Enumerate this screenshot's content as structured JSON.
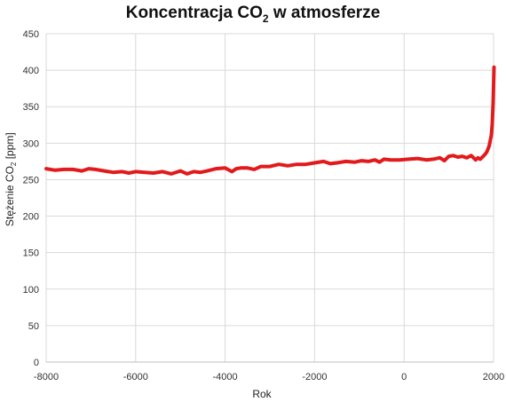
{
  "chart_data": {
    "type": "line",
    "title_main": "Koncentracja CO",
    "title_sub": "2",
    "title_tail": " w atmosferze",
    "xlabel": "Rok",
    "ylabel_main": "Stężenie CO",
    "ylabel_sub": "2",
    "ylabel_tail": " [ppm]",
    "xlim": [
      -8000,
      2000
    ],
    "ylim": [
      0,
      450
    ],
    "xticks": [
      -8000,
      -6000,
      -4000,
      -2000,
      0,
      2000
    ],
    "yticks": [
      0,
      50,
      100,
      150,
      200,
      250,
      300,
      350,
      400,
      450
    ],
    "grid": true,
    "series": [
      {
        "color": "#e31a1c",
        "x": [
          -8000,
          -7800,
          -7600,
          -7400,
          -7200,
          -7050,
          -6900,
          -6700,
          -6500,
          -6300,
          -6150,
          -6000,
          -5800,
          -5600,
          -5400,
          -5200,
          -5000,
          -4850,
          -4700,
          -4550,
          -4400,
          -4200,
          -4000,
          -3850,
          -3750,
          -3650,
          -3500,
          -3350,
          -3200,
          -3000,
          -2800,
          -2600,
          -2400,
          -2200,
          -2000,
          -1800,
          -1650,
          -1500,
          -1300,
          -1100,
          -950,
          -800,
          -650,
          -550,
          -450,
          -300,
          -100,
          100,
          300,
          500,
          650,
          800,
          900,
          1000,
          1100,
          1200,
          1300,
          1400,
          1500,
          1600,
          1650,
          1700,
          1750,
          1800,
          1850,
          1900,
          1950,
          1970,
          1990,
          2010
        ],
        "y": [
          265,
          263,
          264,
          264,
          262,
          265,
          264,
          262,
          260,
          261,
          259,
          261,
          260,
          259,
          261,
          258,
          262,
          258,
          261,
          260,
          262,
          265,
          266,
          261,
          265,
          266,
          266,
          264,
          268,
          268,
          271,
          269,
          271,
          271,
          273,
          275,
          272,
          273,
          275,
          274,
          276,
          275,
          277,
          274,
          278,
          277,
          277,
          278,
          279,
          277,
          278,
          280,
          276,
          282,
          283,
          281,
          282,
          280,
          283,
          277,
          280,
          278,
          281,
          284,
          288,
          296,
          311,
          326,
          354,
          404
        ]
      }
    ]
  }
}
